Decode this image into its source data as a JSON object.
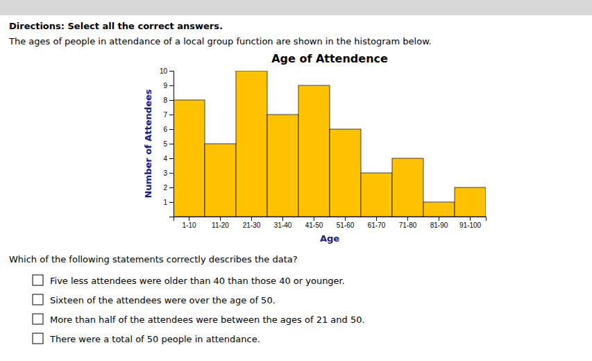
{
  "chart_data": {
    "type": "bar",
    "title": "Age of Attendence",
    "xlabel": "Age",
    "ylabel": "Number of Attendees",
    "categories": [
      "1-10",
      "11-20",
      "21-30",
      "31-40",
      "41-50",
      "51-60",
      "61-70",
      "71-80",
      "81-90",
      "91-100"
    ],
    "values": [
      8,
      5,
      10,
      7,
      9,
      6,
      3,
      4,
      1,
      2
    ],
    "color": "#FFC200",
    "ylim": [
      0,
      10
    ],
    "yticks": [
      1,
      2,
      3,
      4,
      5,
      6,
      7,
      8,
      9,
      10
    ],
    "grid": false,
    "directions": "Directions: Select all the correct answers.",
    "description": "The ages of people in attendance of a local group function are shown in the histogram below.",
    "question": "Which of the following statements correctly describes the data?",
    "options": [
      "Five less attendees were older than 40 than those 40 or younger.",
      "Sixteen of the attendees were over the age of 50.",
      "More than half of the attendees were between the ages of 21 and 50.",
      "There were a total of 50 people in attendance."
    ]
  }
}
